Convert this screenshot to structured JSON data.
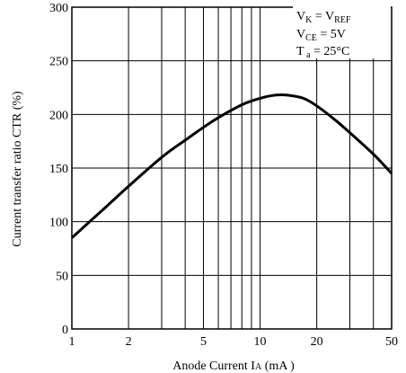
{
  "chart_data": {
    "type": "line",
    "title": "",
    "xlabel": "Anode Current  I",
    "xlabel_sub": "A",
    "xlabel_unit": " (mA )",
    "ylabel": "Current transfer ratio CTR (%)",
    "xscale": "log",
    "xlim": [
      1,
      50
    ],
    "ylim": [
      0,
      300
    ],
    "x_ticks": [
      1,
      2,
      5,
      10,
      20,
      50
    ],
    "x_tick_labels": [
      "1",
      "2",
      "5",
      "10",
      "20",
      "50"
    ],
    "x_grid": [
      1,
      2,
      3,
      4,
      5,
      6,
      7,
      8,
      9,
      10,
      20,
      30,
      40,
      50
    ],
    "y_ticks": [
      0,
      50,
      100,
      150,
      200,
      250,
      300
    ],
    "y_tick_labels": [
      "0",
      "50",
      "100",
      "150",
      "200",
      "250",
      "300"
    ],
    "grid": true,
    "legend_position": "top-right",
    "conditions": [
      {
        "main": "V",
        "sub": "K",
        "mid": " = V",
        "sub2": "REF",
        "tail": ""
      },
      {
        "main": "V",
        "sub": "CE",
        "mid": " = 5V",
        "sub2": "",
        "tail": ""
      },
      {
        "main": "T",
        "sub": " a",
        "mid": " = 25°C",
        "sub2": "",
        "tail": ""
      }
    ],
    "series": [
      {
        "x": [
          1,
          1.5,
          2,
          3,
          4,
          5,
          6,
          8,
          10,
          12,
          14,
          17,
          20,
          25,
          30,
          40,
          50
        ],
        "values": [
          85,
          113,
          133,
          160,
          176,
          188,
          197,
          209,
          215,
          218,
          218,
          215,
          208,
          195,
          183,
          163,
          145
        ]
      }
    ]
  }
}
